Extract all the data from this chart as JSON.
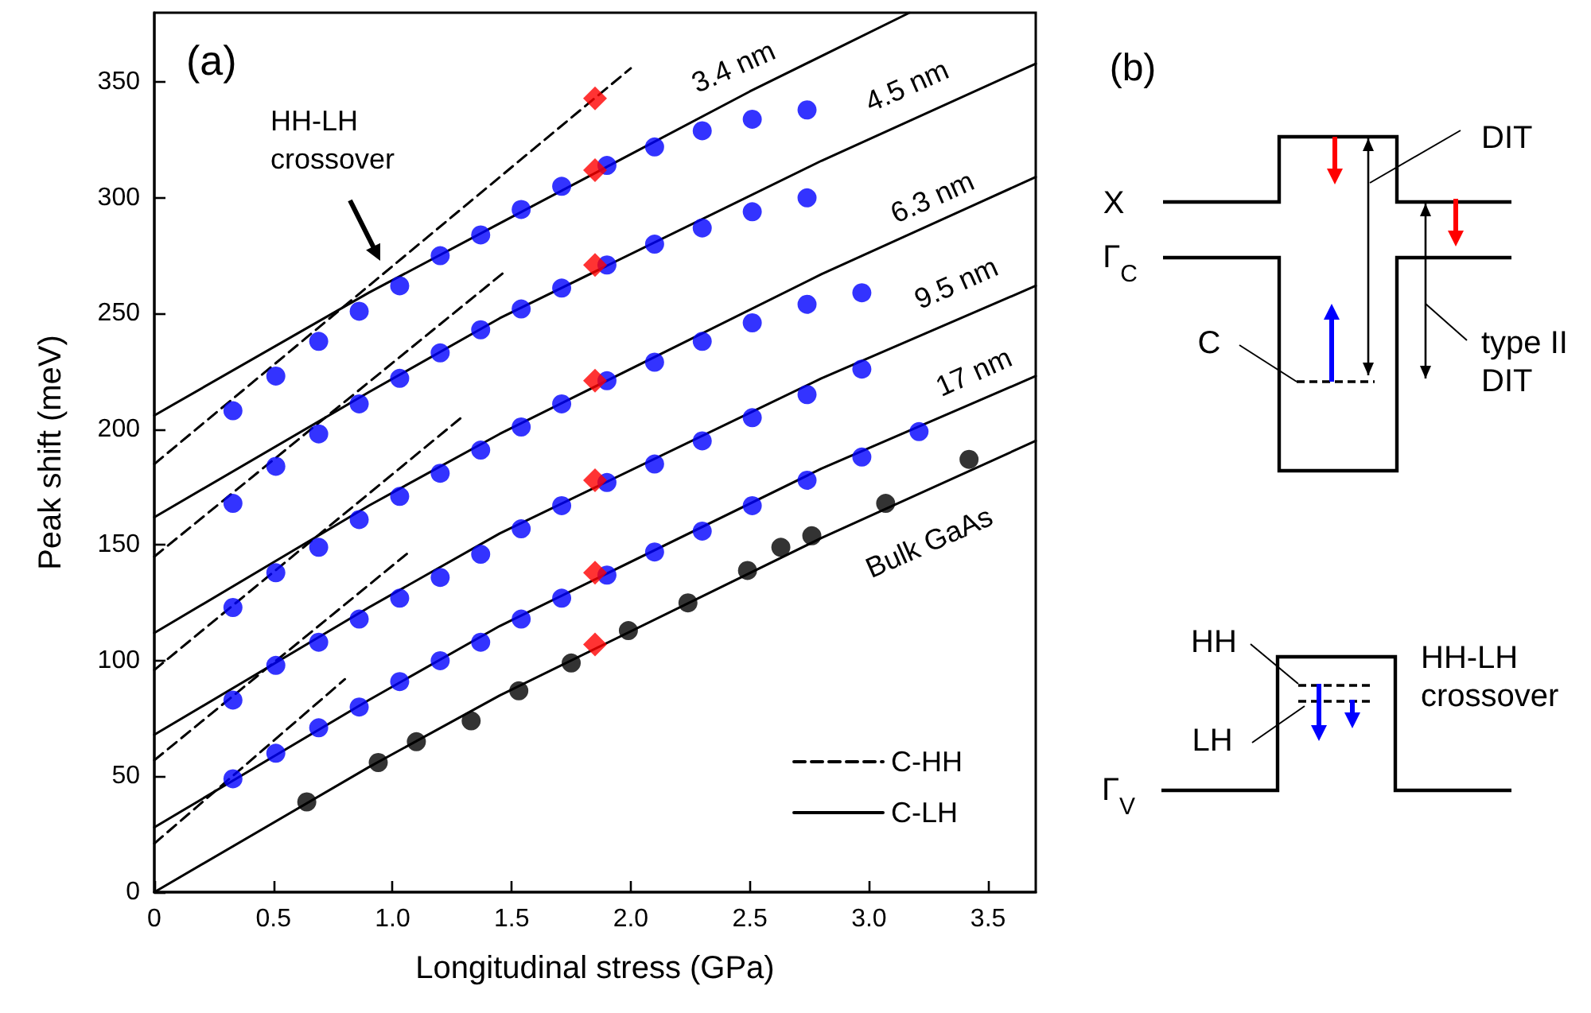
{
  "chart_data": [
    {
      "type": "scatter",
      "title": "(a)",
      "xlabel": "Longitudinal stress (GPa)",
      "ylabel": "Peak shift (meV)",
      "xlim": [
        0,
        3.7
      ],
      "xticks": [
        0,
        0.5,
        {
          "value": 1,
          "label": "1.0"
        },
        1.5,
        {
          "value": 2,
          "label": "2.0"
        },
        2.5,
        {
          "value": 3,
          "label": "3.0"
        },
        3.5
      ],
      "ylim": [
        0,
        380
      ],
      "yticks": [
        0,
        50,
        100,
        150,
        200,
        250,
        300,
        350
      ],
      "grid": false,
      "legend": "bottom right",
      "annotations": [
        "3.4 nm",
        "4.5 nm",
        "6.3 nm",
        "9.5 nm",
        "17 nm",
        "Bulk GaAs",
        "HH-LH\ncrossover"
      ],
      "series": [
        {
          "name": "C-HH",
          "type": "line",
          "color": "#000000",
          "line_style": "dashed",
          "marker": "none",
          "x": [
            0,
            2.0
          ],
          "values": [
            185,
            356
          ]
        },
        {
          "type": "line",
          "color": "#000000",
          "line_style": "dashed",
          "marker": "none",
          "x": [
            0,
            1.47
          ],
          "values": [
            145,
            268
          ]
        },
        {
          "type": "line",
          "color": "#000000",
          "line_style": "dashed",
          "marker": "none",
          "x": [
            0,
            1.3
          ],
          "values": [
            96,
            206
          ]
        },
        {
          "type": "line",
          "color": "#000000",
          "line_style": "dashed",
          "marker": "none",
          "x": [
            0,
            1.07
          ],
          "values": [
            57,
            147
          ]
        },
        {
          "type": "line",
          "color": "#000000",
          "line_style": "dashed",
          "marker": "none",
          "x": [
            0,
            0.8
          ],
          "values": [
            21,
            92
          ]
        },
        {
          "name": "C-LH",
          "type": "line",
          "color": "#000000",
          "line_style": "solid",
          "marker": "none",
          "x": [
            0,
            0.9,
            1.45,
            2.5,
            3.17
          ],
          "values": [
            206,
            259,
            289,
            346,
            380
          ]
        },
        {
          "type": "line",
          "color": "#000000",
          "line_style": "solid",
          "marker": "none",
          "x": [
            0,
            0.9,
            1.45,
            2.8,
            3.7
          ],
          "values": [
            162,
            216,
            248,
            316,
            358
          ]
        },
        {
          "type": "line",
          "color": "#000000",
          "line_style": "solid",
          "marker": "none",
          "x": [
            0,
            0.9,
            1.45,
            2.8,
            3.7
          ],
          "values": [
            112,
            167,
            198,
            267,
            309
          ]
        },
        {
          "type": "line",
          "color": "#000000",
          "line_style": "solid",
          "marker": "none",
          "x": [
            0,
            0.9,
            1.45,
            2.8,
            3.7
          ],
          "values": [
            68,
            123,
            155,
            222,
            262
          ]
        },
        {
          "type": "line",
          "color": "#000000",
          "line_style": "solid",
          "marker": "none",
          "x": [
            0,
            0.9,
            1.45,
            2.8,
            3.7
          ],
          "values": [
            28,
            83,
            115,
            183,
            223
          ]
        },
        {
          "type": "line",
          "color": "#000000",
          "line_style": "solid",
          "marker": "none",
          "x": [
            0,
            0.9,
            1.45,
            2.8,
            3.7
          ],
          "values": [
            0,
            54,
            85,
            153,
            195
          ]
        },
        {
          "type": "scatter",
          "color": "#0000ff",
          "marker": "circle",
          "x": [
            0.33,
            0.51,
            0.69,
            0.86,
            1.03,
            1.2,
            1.37,
            1.54,
            1.71,
            1.9,
            2.1,
            2.3,
            2.51,
            2.74
          ],
          "values": [
            208,
            223,
            238,
            251,
            262,
            275,
            284,
            295,
            305,
            314,
            322,
            329,
            334,
            338
          ]
        },
        {
          "type": "scatter",
          "color": "#0000ff",
          "marker": "circle",
          "x": [
            0.33,
            0.51,
            0.69,
            0.86,
            1.03,
            1.2,
            1.37,
            1.54,
            1.71,
            1.9,
            2.1,
            2.3,
            2.51,
            2.74
          ],
          "values": [
            168,
            184,
            198,
            211,
            222,
            233,
            243,
            252,
            261,
            271,
            280,
            287,
            294,
            300
          ]
        },
        {
          "type": "scatter",
          "color": "#0000ff",
          "marker": "circle",
          "x": [
            0.33,
            0.51,
            0.69,
            0.86,
            1.03,
            1.2,
            1.37,
            1.54,
            1.71,
            1.9,
            2.1,
            2.3,
            2.51,
            2.74,
            2.97
          ],
          "values": [
            123,
            138,
            149,
            161,
            171,
            181,
            191,
            201,
            211,
            221,
            229,
            238,
            246,
            254,
            259
          ]
        },
        {
          "type": "scatter",
          "color": "#0000ff",
          "marker": "circle",
          "x": [
            0.33,
            0.51,
            0.69,
            0.86,
            1.03,
            1.2,
            1.37,
            1.54,
            1.71,
            1.9,
            2.1,
            2.3,
            2.51,
            2.74,
            2.97
          ],
          "values": [
            83,
            98,
            108,
            118,
            127,
            136,
            146,
            157,
            167,
            177,
            185,
            195,
            205,
            215,
            226
          ]
        },
        {
          "type": "scatter",
          "color": "#0000ff",
          "marker": "circle",
          "x": [
            0.33,
            0.51,
            0.69,
            0.86,
            1.03,
            1.2,
            1.37,
            1.54,
            1.71,
            1.9,
            2.1,
            2.3,
            2.51,
            2.74,
            2.97,
            3.21
          ],
          "values": [
            49,
            60,
            71,
            80,
            91,
            100,
            108,
            118,
            127,
            137,
            147,
            156,
            167,
            178,
            188,
            199
          ]
        },
        {
          "type": "scatter",
          "color": "#000000",
          "marker": "circle",
          "x": [
            0.64,
            0.94,
            1.1,
            1.33,
            1.53,
            1.75,
            1.99,
            2.24,
            2.49,
            2.63,
            2.76,
            3.07,
            3.42
          ],
          "values": [
            39,
            56,
            65,
            74,
            87,
            99,
            113,
            125,
            139,
            149,
            154,
            168,
            187
          ]
        },
        {
          "type": "scatter",
          "color": "#ff0000",
          "marker": "diamond",
          "x": [
            1.85,
            1.85,
            1.85,
            1.85,
            1.85,
            1.85
          ],
          "values": [
            312,
            271,
            221,
            178,
            138,
            107
          ]
        },
        {
          "type": "scatter",
          "color": "#ff0000",
          "marker": "diamond",
          "x": [
            1.85
          ],
          "values": [
            343
          ]
        }
      ]
    },
    {
      "type": "other",
      "title": "(b)",
      "annotations": [
        "X",
        "Γ$_{C}$",
        "C",
        "DIT",
        "type II\nDIT",
        "HH",
        "LH",
        "HH-LH\ncrossover",
        "Γ$_{V}$"
      ]
    }
  ]
}
